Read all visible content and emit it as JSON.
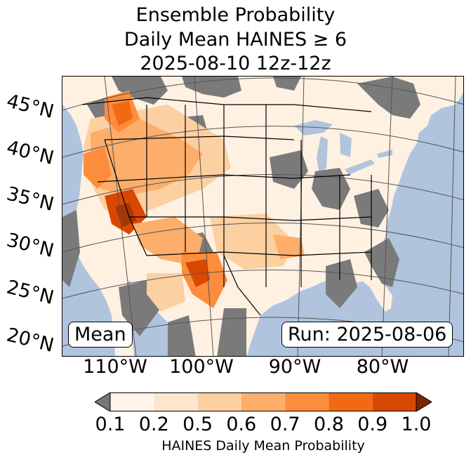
{
  "title": {
    "line1": "Ensemble Probability",
    "line2": "Daily Mean HAINES ≥ 6",
    "line3": "2025-08-10 12z-12z"
  },
  "map": {
    "lat_labels": [
      "45°N",
      "40°N",
      "35°N",
      "30°N",
      "25°N",
      "20°N"
    ],
    "lon_labels": [
      "110°W",
      "100°W",
      "90°W",
      "80°W"
    ],
    "stat_box": "Mean",
    "run_box": "Run: 2025-08-06",
    "colors": {
      "ocean": "#b0c4de",
      "no_data_land": "#7a7a7a",
      "under_min": "#777777"
    }
  },
  "colorbar": {
    "ticks": [
      "0.1",
      "0.2",
      "0.5",
      "0.6",
      "0.7",
      "0.8",
      "0.9",
      "1.0"
    ],
    "colors": [
      "#fff5eb",
      "#fee6ce",
      "#fdd0a2",
      "#fdae6b",
      "#fd8d3c",
      "#f16913",
      "#d94801",
      "#a63603"
    ],
    "label": "HAINES Daily Mean Probability"
  }
}
